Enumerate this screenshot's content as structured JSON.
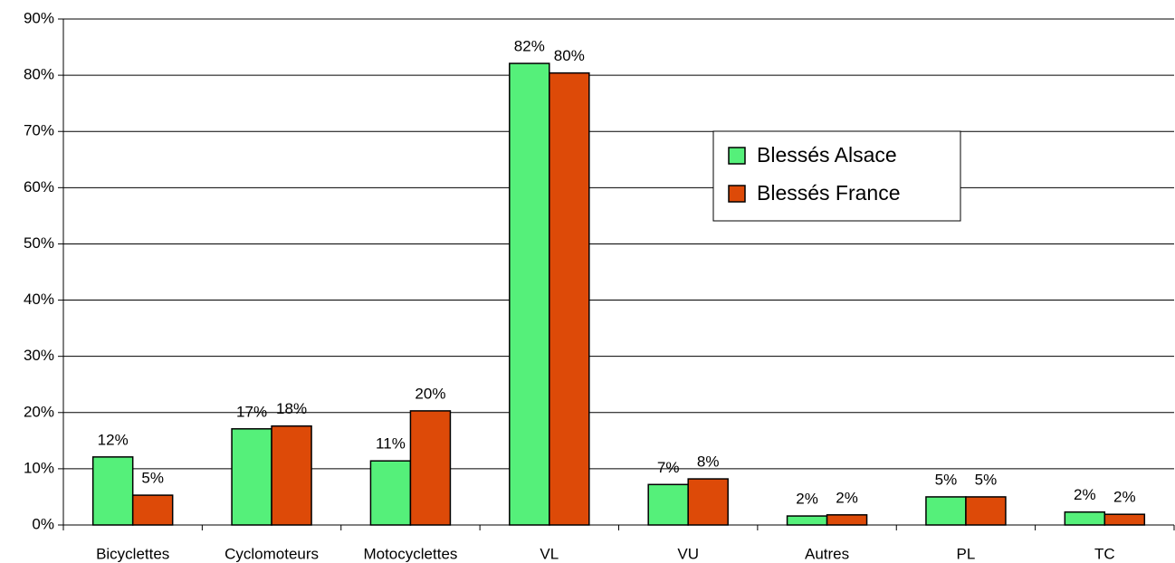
{
  "chart_data": {
    "type": "bar",
    "categories": [
      "Bicyclettes",
      "Cyclomoteurs",
      "Motocyclettes",
      "VL",
      "VU",
      "Autres",
      "PL",
      "TC"
    ],
    "series": [
      {
        "name": "Blessés Alsace",
        "color": "#55f07a",
        "values": [
          12.1,
          17.1,
          11.4,
          82.1,
          7.2,
          1.6,
          5.0,
          2.3
        ],
        "value_labels": [
          "12%",
          "17%",
          "11%",
          "82%",
          "7%",
          "2%",
          "5%",
          "2%"
        ]
      },
      {
        "name": "Blessés France",
        "color": "#dd4a08",
        "values": [
          5.3,
          17.6,
          20.3,
          80.4,
          8.2,
          1.8,
          5.0,
          1.9
        ],
        "value_labels": [
          "5%",
          "18%",
          "20%",
          "80%",
          "8%",
          "2%",
          "5%",
          "2%"
        ]
      }
    ],
    "ylim": [
      0,
      90
    ],
    "yticks": [
      {
        "value": 0,
        "label": "0%"
      },
      {
        "value": 10,
        "label": "10%"
      },
      {
        "value": 20,
        "label": "20%"
      },
      {
        "value": 30,
        "label": "30%"
      },
      {
        "value": 40,
        "label": "40%"
      },
      {
        "value": 50,
        "label": "50%"
      },
      {
        "value": 60,
        "label": "60%"
      },
      {
        "value": 70,
        "label": "70%"
      },
      {
        "value": 80,
        "label": "80%"
      },
      {
        "value": 90,
        "label": "90%"
      }
    ],
    "grid": true,
    "legend": "right"
  }
}
